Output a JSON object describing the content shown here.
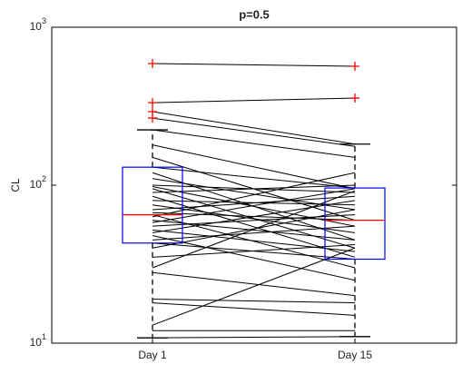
{
  "chart_data": {
    "type": "boxplot",
    "title": "p=0.5",
    "ylabel": "CL",
    "categories": [
      "Day 1",
      "Day 15"
    ],
    "yscale": "log",
    "ylim": [
      10,
      1000
    ],
    "yticks": [
      {
        "value": 10,
        "label": "10^1"
      },
      {
        "value": 100,
        "label": "10^2"
      },
      {
        "value": 1000,
        "label": "10^3"
      }
    ],
    "box_color": "#0000ff",
    "median_color": "#ff0000",
    "outlier_color": "#ff0000",
    "line_color": "#000000",
    "boxes": [
      {
        "whisker_low": 10.8,
        "q1": 43,
        "median": 65,
        "q3": 130,
        "whisker_high": 224,
        "outliers": [
          589,
          333,
          292,
          266
        ]
      },
      {
        "whisker_low": 11,
        "q1": 34,
        "median": 60,
        "q3": 96,
        "whisker_high": 182,
        "outliers": [
          566,
          356
        ]
      }
    ],
    "pairs": [
      [
        589,
        566
      ],
      [
        333,
        356
      ],
      [
        292,
        182
      ],
      [
        266,
        176
      ],
      [
        224,
        150
      ],
      [
        180,
        95
      ],
      [
        150,
        60
      ],
      [
        130,
        96
      ],
      [
        120,
        45
      ],
      [
        110,
        70
      ],
      [
        100,
        90
      ],
      [
        98,
        55
      ],
      [
        95,
        40
      ],
      [
        90,
        100
      ],
      [
        85,
        35
      ],
      [
        80,
        75
      ],
      [
        75,
        50
      ],
      [
        70,
        85
      ],
      [
        67,
        60
      ],
      [
        65,
        30
      ],
      [
        63,
        120
      ],
      [
        60,
        45
      ],
      [
        58,
        95
      ],
      [
        55,
        65
      ],
      [
        52,
        38
      ],
      [
        50,
        80
      ],
      [
        48,
        25
      ],
      [
        45,
        55
      ],
      [
        43,
        34
      ],
      [
        40,
        70
      ],
      [
        35,
        42
      ],
      [
        30,
        92
      ],
      [
        28,
        20
      ],
      [
        19,
        18
      ],
      [
        18,
        15
      ],
      [
        13,
        40
      ],
      [
        12,
        12
      ],
      [
        10.8,
        11
      ]
    ]
  }
}
